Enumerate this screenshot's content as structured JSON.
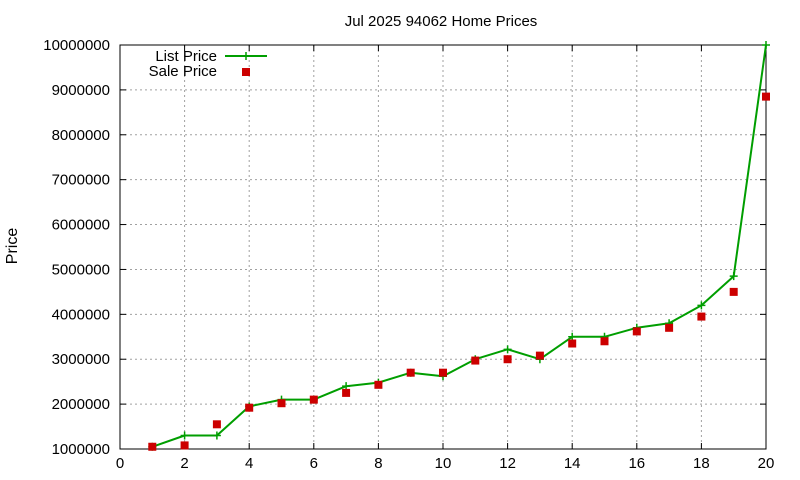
{
  "chart_data": {
    "type": "line",
    "title": "Jul 2025 94062 Home Prices",
    "xlabel": "",
    "ylabel": "Price",
    "xlim": [
      0,
      20
    ],
    "ylim": [
      1000000,
      10000000
    ],
    "x_ticks": [
      0,
      2,
      4,
      6,
      8,
      10,
      12,
      14,
      16,
      18,
      20
    ],
    "y_ticks": [
      1000000,
      2000000,
      3000000,
      4000000,
      5000000,
      6000000,
      7000000,
      8000000,
      9000000,
      10000000
    ],
    "grid": true,
    "legend_position": "top-left",
    "series": [
      {
        "name": "List Price",
        "style": "line-with-plus-markers",
        "color": "#009e00",
        "x": [
          1,
          2,
          3,
          4,
          5,
          6,
          7,
          8,
          9,
          10,
          11,
          12,
          13,
          14,
          15,
          16,
          17,
          18,
          19,
          20
        ],
        "values": [
          1050000,
          1300000,
          1300000,
          1950000,
          2100000,
          2100000,
          2400000,
          2480000,
          2700000,
          2620000,
          3000000,
          3220000,
          3000000,
          3500000,
          3500000,
          3700000,
          3800000,
          4200000,
          4850000,
          10000000
        ]
      },
      {
        "name": "Sale Price",
        "style": "square-markers",
        "color": "#cc0000",
        "x": [
          1,
          2,
          3,
          4,
          5,
          6,
          7,
          8,
          9,
          10,
          11,
          12,
          13,
          14,
          15,
          16,
          17,
          18,
          19,
          20
        ],
        "values": [
          1050000,
          1080000,
          1550000,
          1920000,
          2020000,
          2100000,
          2250000,
          2430000,
          2700000,
          2700000,
          2970000,
          3000000,
          3080000,
          3350000,
          3400000,
          3620000,
          3700000,
          3950000,
          4500000,
          8850000
        ]
      }
    ]
  }
}
